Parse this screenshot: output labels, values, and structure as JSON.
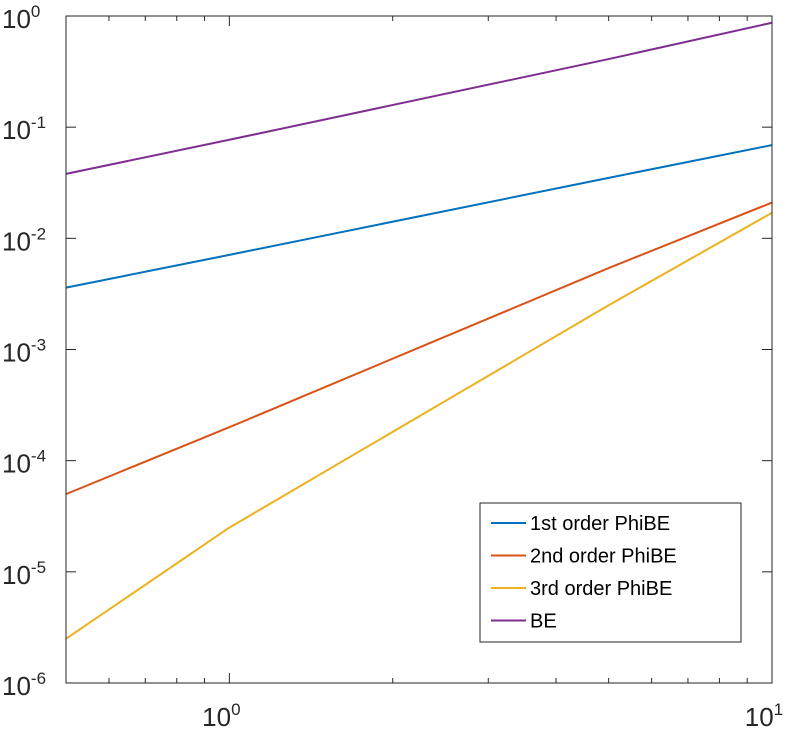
{
  "chart_data": {
    "type": "line",
    "title": "",
    "xlabel": "",
    "ylabel": "",
    "xscale": "log",
    "yscale": "log",
    "xlim": [
      0.5,
      10
    ],
    "ylim": [
      1e-06,
      1
    ],
    "grid": false,
    "legend": {
      "placement": "bottom-right"
    },
    "x_ticks": [
      {
        "value": 1,
        "base": "10",
        "exp": "0"
      },
      {
        "value": 10,
        "base": "10",
        "exp": "1"
      }
    ],
    "y_ticks": [
      {
        "value": 1,
        "base": "10",
        "exp": "0"
      },
      {
        "value": 0.1,
        "base": "10",
        "exp": "-1"
      },
      {
        "value": 0.01,
        "base": "10",
        "exp": "-2"
      },
      {
        "value": 0.001,
        "base": "10",
        "exp": "-3"
      },
      {
        "value": 0.0001,
        "base": "10",
        "exp": "-4"
      },
      {
        "value": 1e-05,
        "base": "10",
        "exp": "-5"
      },
      {
        "value": 1e-06,
        "base": "10",
        "exp": "-6"
      }
    ],
    "series": [
      {
        "name": "1st order PhiBE",
        "color": "#0072BD",
        "x": [
          0.5,
          1,
          5,
          10
        ],
        "y": [
          0.0036,
          0.0071,
          0.035,
          0.069
        ]
      },
      {
        "name": "2nd order PhiBE",
        "color": "#D95319",
        "x": [
          0.5,
          1,
          5,
          10
        ],
        "y": [
          5e-05,
          0.0002,
          0.0054,
          0.021
        ]
      },
      {
        "name": "3rd order PhiBE",
        "color": "#EDB120",
        "x": [
          0.5,
          1,
          5,
          10
        ],
        "y": [
          2.5e-06,
          2.5e-05,
          0.0025,
          0.017
        ]
      },
      {
        "name": "BE",
        "color": "#7E2F8E",
        "x": [
          0.5,
          1,
          5,
          10
        ],
        "y": [
          0.038,
          0.077,
          0.41,
          0.87
        ]
      }
    ]
  }
}
